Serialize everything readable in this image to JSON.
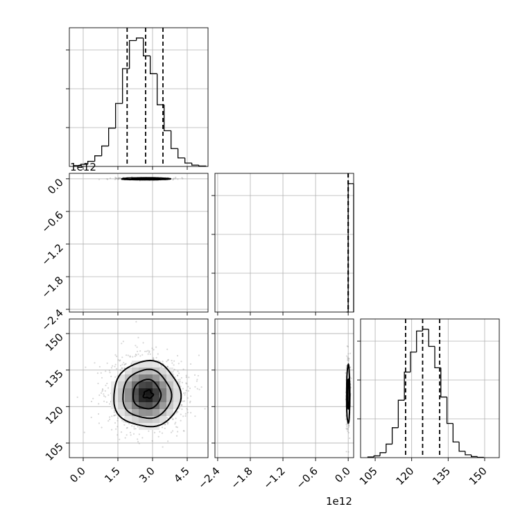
{
  "chart_data": {
    "type": "corner",
    "colors": {
      "line": "#000000",
      "grid": "#b0b0b0",
      "scatter": "#8c8c8c",
      "density_dark": "#000000"
    },
    "offset_labels": {
      "p1": "1e12",
      "p2_x": "1e12"
    },
    "params": [
      {
        "name": "",
        "range": [
          -0.6,
          5.4
        ],
        "ticks": [
          0.0,
          1.5,
          3.0,
          4.5
        ],
        "tick_labels": [
          "0.0",
          "1.5",
          "3.0",
          "4.5"
        ]
      },
      {
        "name": "",
        "range": [
          -2.45,
          0.1
        ],
        "ticks": [
          -2.4,
          -1.8,
          -1.2,
          -0.6,
          0.0
        ],
        "tick_labels": [
          "−2.4",
          "−1.8",
          "−1.2",
          "−0.6",
          "0.0"
        ]
      },
      {
        "name": "",
        "range": [
          99,
          156
        ],
        "ticks": [
          105,
          120,
          135,
          150
        ],
        "tick_labels": [
          "105",
          "120",
          "135",
          "150"
        ]
      }
    ],
    "histograms": [
      {
        "param": 0,
        "bin_edges": [
          -0.4,
          -0.1,
          0.2,
          0.5,
          0.8,
          1.1,
          1.4,
          1.7,
          2.0,
          2.3,
          2.6,
          2.9,
          3.2,
          3.5,
          3.8,
          4.1,
          4.4,
          4.7,
          5.0,
          5.3
        ],
        "counts": [
          2,
          5,
          12,
          25,
          48,
          90,
          148,
          230,
          296,
          302,
          260,
          218,
          145,
          84,
          42,
          20,
          8,
          3,
          1
        ],
        "quantiles": [
          1.9,
          2.7,
          3.45
        ]
      },
      {
        "param": 1,
        "bin_edges": [
          -0.03,
          0.0,
          0.03,
          0.06,
          0.09,
          0.12,
          0.15
        ],
        "counts": [
          0,
          5000,
          5000,
          5000,
          5000,
          0
        ],
        "quantiles": [
          -0.001,
          0.0,
          0.001
        ]
      },
      {
        "param": 2,
        "bin_edges": [
          102,
          104.5,
          107,
          109.5,
          112,
          114.5,
          117,
          119.5,
          122,
          124.5,
          127,
          129.5,
          132,
          134.5,
          137,
          139.5,
          142,
          144.5,
          147,
          149.5
        ],
        "counts": [
          2,
          5,
          14,
          38,
          84,
          161,
          240,
          296,
          355,
          360,
          312,
          252,
          170,
          96,
          44,
          18,
          8,
          3,
          1
        ],
        "quantiles": [
          117.5,
          124.5,
          131.5
        ]
      }
    ],
    "contours_2d": [
      {
        "x": 0,
        "y": 1,
        "center": [
          2.7,
          0.0
        ],
        "levels_halfwidths": [
          [
            1.05,
            0.018
          ],
          [
            0.6,
            0.012
          ]
        ]
      },
      {
        "x": 0,
        "y": 2,
        "center": [
          2.75,
          125
        ],
        "levels_halfwidths": [
          [
            1.45,
            13.5
          ],
          [
            1.05,
            10
          ],
          [
            0.6,
            6
          ],
          [
            0.2,
            1.6
          ]
        ]
      },
      {
        "x": 1,
        "y": 2,
        "center": [
          0.0,
          125
        ],
        "levels_halfwidths": [
          [
            0.03,
            12
          ],
          [
            0.015,
            6
          ]
        ]
      }
    ]
  }
}
